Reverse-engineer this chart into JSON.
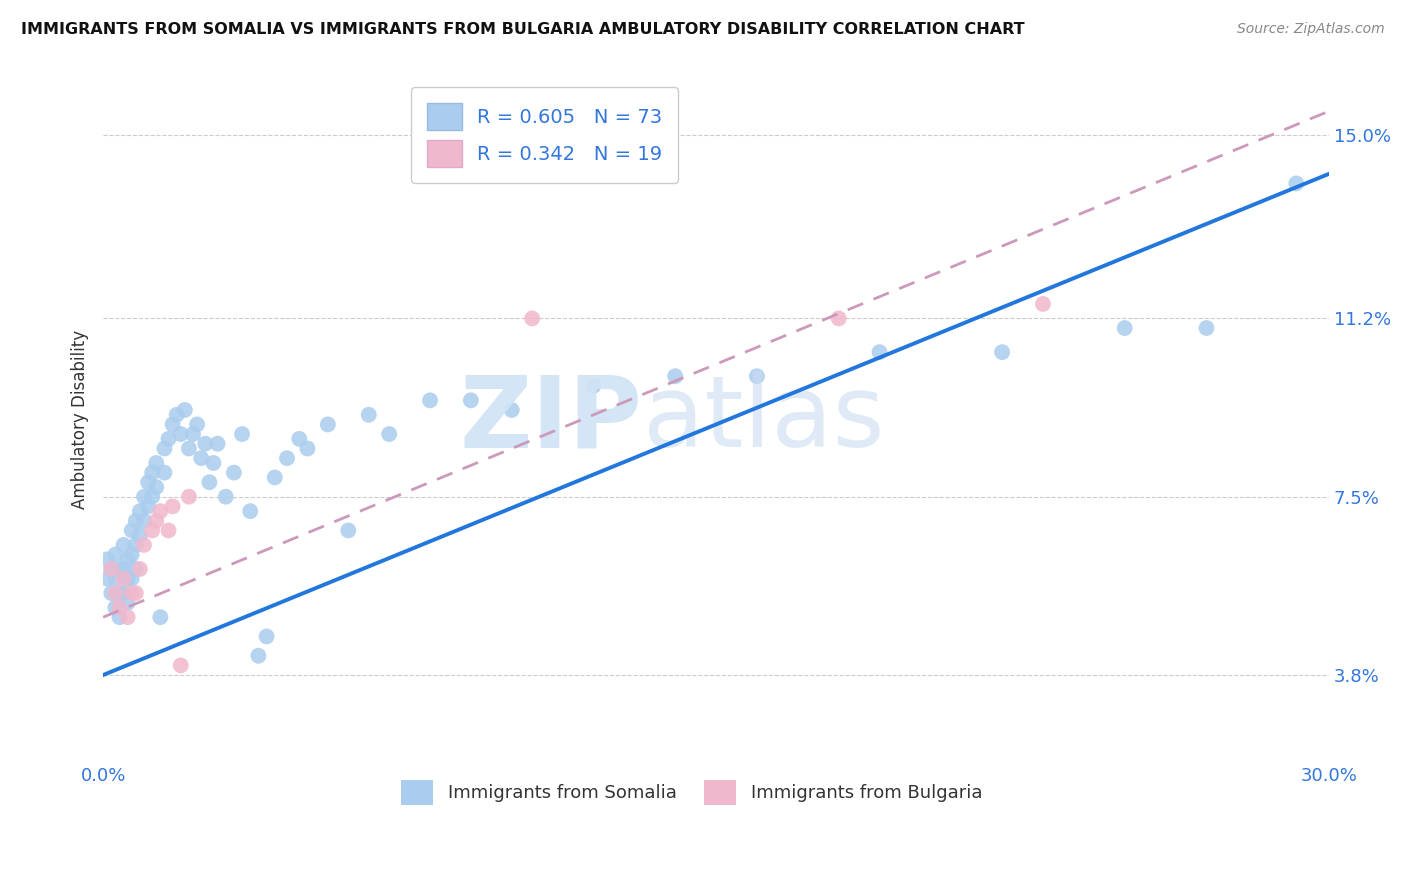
{
  "title": "IMMIGRANTS FROM SOMALIA VS IMMIGRANTS FROM BULGARIA AMBULATORY DISABILITY CORRELATION CHART",
  "source": "Source: ZipAtlas.com",
  "ylabel": "Ambulatory Disability",
  "xlim": [
    0.0,
    0.3
  ],
  "ylim": [
    0.02,
    0.162
  ],
  "ytick_positions": [
    0.038,
    0.075,
    0.112,
    0.15
  ],
  "ytick_labels": [
    "3.8%",
    "7.5%",
    "11.2%",
    "15.0%"
  ],
  "somalia_color": "#aaccee",
  "bulgaria_color": "#f0b8cc",
  "somalia_line_color": "#2277dd",
  "bulgaria_line_color": "#cc99bb",
  "R_somalia": 0.605,
  "N_somalia": 73,
  "R_bulgaria": 0.342,
  "N_bulgaria": 19,
  "legend_label_somalia": "Immigrants from Somalia",
  "legend_label_bulgaria": "Immigrants from Bulgaria",
  "somalia_x": [
    0.001,
    0.001,
    0.002,
    0.002,
    0.003,
    0.003,
    0.003,
    0.004,
    0.004,
    0.004,
    0.005,
    0.005,
    0.005,
    0.006,
    0.006,
    0.006,
    0.007,
    0.007,
    0.007,
    0.008,
    0.008,
    0.008,
    0.009,
    0.009,
    0.01,
    0.01,
    0.011,
    0.011,
    0.012,
    0.012,
    0.013,
    0.013,
    0.014,
    0.015,
    0.015,
    0.016,
    0.017,
    0.018,
    0.019,
    0.02,
    0.021,
    0.022,
    0.023,
    0.024,
    0.025,
    0.026,
    0.027,
    0.028,
    0.03,
    0.032,
    0.034,
    0.036,
    0.038,
    0.04,
    0.042,
    0.045,
    0.048,
    0.05,
    0.055,
    0.06,
    0.065,
    0.07,
    0.08,
    0.09,
    0.1,
    0.12,
    0.14,
    0.16,
    0.19,
    0.22,
    0.25,
    0.27,
    0.292
  ],
  "somalia_y": [
    0.062,
    0.058,
    0.06,
    0.055,
    0.063,
    0.058,
    0.052,
    0.06,
    0.055,
    0.05,
    0.065,
    0.06,
    0.055,
    0.062,
    0.058,
    0.053,
    0.068,
    0.063,
    0.058,
    0.07,
    0.065,
    0.06,
    0.072,
    0.067,
    0.075,
    0.07,
    0.078,
    0.073,
    0.08,
    0.075,
    0.082,
    0.077,
    0.05,
    0.085,
    0.08,
    0.087,
    0.09,
    0.092,
    0.088,
    0.093,
    0.085,
    0.088,
    0.09,
    0.083,
    0.086,
    0.078,
    0.082,
    0.086,
    0.075,
    0.08,
    0.088,
    0.072,
    0.042,
    0.046,
    0.079,
    0.083,
    0.087,
    0.085,
    0.09,
    0.068,
    0.092,
    0.088,
    0.095,
    0.095,
    0.093,
    0.098,
    0.1,
    0.1,
    0.105,
    0.105,
    0.11,
    0.11,
    0.14
  ],
  "bulgaria_x": [
    0.002,
    0.003,
    0.004,
    0.005,
    0.006,
    0.007,
    0.008,
    0.009,
    0.01,
    0.012,
    0.013,
    0.014,
    0.016,
    0.017,
    0.019,
    0.021,
    0.105,
    0.18,
    0.23
  ],
  "bulgaria_y": [
    0.06,
    0.055,
    0.052,
    0.058,
    0.05,
    0.055,
    0.055,
    0.06,
    0.065,
    0.068,
    0.07,
    0.072,
    0.068,
    0.073,
    0.04,
    0.075,
    0.112,
    0.112,
    0.115
  ],
  "somalia_line_x0": 0.0,
  "somalia_line_y0": 0.038,
  "somalia_line_x1": 0.3,
  "somalia_line_y1": 0.142,
  "bulgaria_line_x0": 0.0,
  "bulgaria_line_y0": 0.05,
  "bulgaria_line_x1": 0.3,
  "bulgaria_line_y1": 0.155
}
